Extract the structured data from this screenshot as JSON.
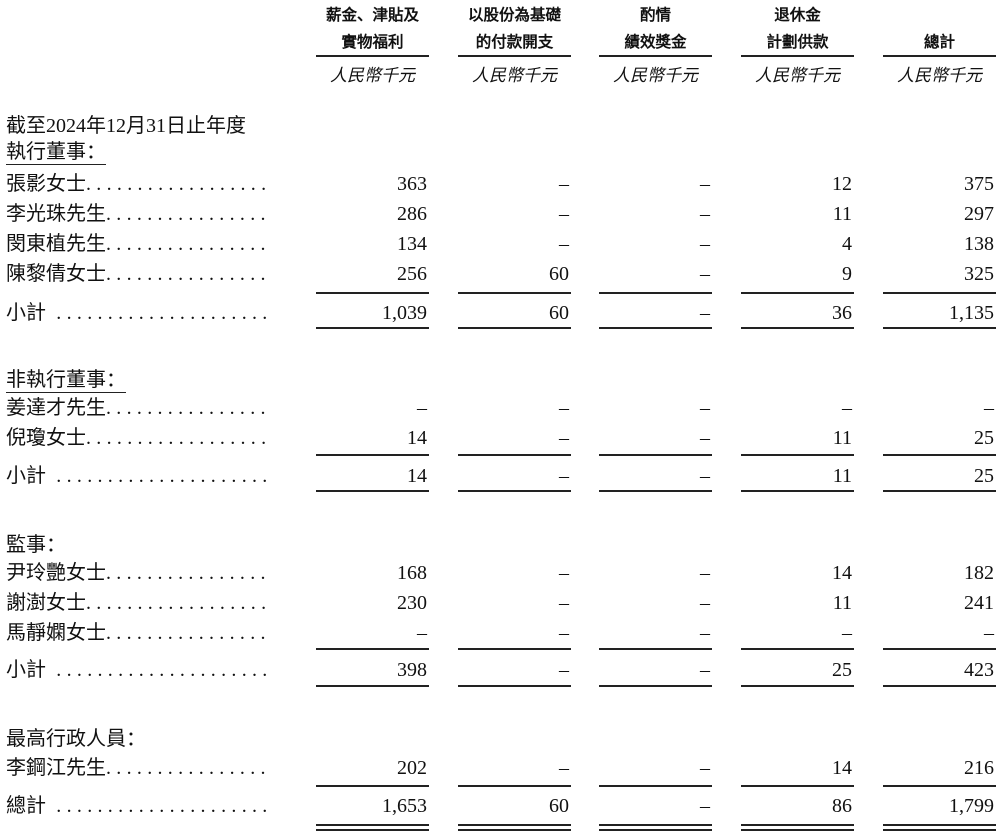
{
  "columns": [
    {
      "header": [
        "薪金、津貼及",
        "實物福利"
      ],
      "unit": "人民幣千元"
    },
    {
      "header": [
        "以股份為基礎",
        "的付款開支"
      ],
      "unit": "人民幣千元"
    },
    {
      "header": [
        "酌情",
        "績效獎金"
      ],
      "unit": "人民幣千元"
    },
    {
      "header": [
        "退休金",
        "計劃供款"
      ],
      "unit": "人民幣千元"
    },
    {
      "header": [
        "",
        "總計"
      ],
      "unit": "人民幣千元"
    }
  ],
  "period_label": "截至2024年12月31日止年度",
  "sections": [
    {
      "title": "執行董事：",
      "underline": true,
      "rows": [
        {
          "name": "張影女士",
          "values": [
            "363",
            "–",
            "–",
            "12",
            "375"
          ]
        },
        {
          "name": "李光珠先生",
          "values": [
            "286",
            "–",
            "–",
            "11",
            "297"
          ]
        },
        {
          "name": "閔東植先生",
          "values": [
            "134",
            "–",
            "–",
            "4",
            "138"
          ]
        },
        {
          "name": "陳黎倩女士",
          "values": [
            "256",
            "60",
            "–",
            "9",
            "325"
          ]
        }
      ],
      "subtotal": {
        "name": "小計",
        "values": [
          "1,039",
          "60",
          "–",
          "36",
          "1,135"
        ]
      }
    },
    {
      "title": "非執行董事：",
      "underline": true,
      "rows": [
        {
          "name": "姜達才先生",
          "values": [
            "–",
            "–",
            "–",
            "–",
            "–"
          ]
        },
        {
          "name": "倪瓊女士",
          "values": [
            "14",
            "–",
            "–",
            "11",
            "25"
          ]
        }
      ],
      "subtotal": {
        "name": "小計",
        "values": [
          "14",
          "–",
          "–",
          "11",
          "25"
        ]
      }
    },
    {
      "title": "監事：",
      "underline": false,
      "rows": [
        {
          "name": "尹玲艷女士",
          "values": [
            "168",
            "–",
            "–",
            "14",
            "182"
          ]
        },
        {
          "name": "謝澍女士",
          "values": [
            "230",
            "–",
            "–",
            "11",
            "241"
          ]
        },
        {
          "name": "馬靜嫻女士",
          "values": [
            "–",
            "–",
            "–",
            "–",
            "–"
          ]
        }
      ],
      "subtotal": {
        "name": "小計",
        "values": [
          "398",
          "–",
          "–",
          "25",
          "423"
        ]
      }
    },
    {
      "title": "最高行政人員：",
      "underline": false,
      "rows": [
        {
          "name": "李鋼江先生",
          "values": [
            "202",
            "–",
            "–",
            "14",
            "216"
          ]
        }
      ]
    }
  ],
  "total": {
    "name": "總計",
    "values": [
      "1,653",
      "60",
      "–",
      "86",
      "1,799"
    ]
  }
}
